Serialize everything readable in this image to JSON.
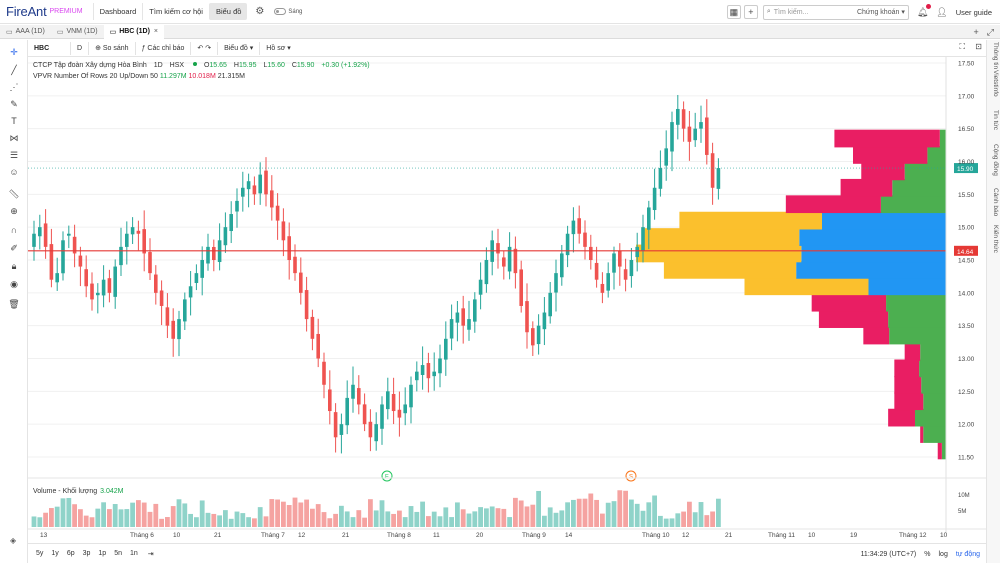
{
  "nav": {
    "logo": "FireAnt",
    "logo_badge": "PREMIUM",
    "items": [
      "Dashboard",
      "Tìm kiếm cơ hội",
      "Biểu đồ"
    ],
    "active_index": 2,
    "theme_label": "Sáng",
    "search_placeholder": "Tìm kiếm...",
    "search_scope": "Chứng khoán",
    "user_guide": "User guide"
  },
  "tabs": [
    {
      "label": "AAA (1D)",
      "active": false
    },
    {
      "label": "VNM (1D)",
      "active": false
    },
    {
      "label": "HBC (1D)",
      "active": true
    }
  ],
  "toolbar": {
    "symbol": "HBC",
    "interval": "D",
    "compare": "So sánh",
    "indicators": "Các chỉ báo",
    "chart_type": "Biểu đồ",
    "profile": "Hồ sơ"
  },
  "legend": {
    "company": "CTCP Tập đoàn Xây dựng Hòa Bình",
    "interval": "1D",
    "exchange": "HSX",
    "open": "15.65",
    "high": "15.95",
    "low": "15.60",
    "close": "15.90",
    "change": "+0.30 (+1.92%)",
    "vp_label": "VPVR Number Of Rows 20 Up/Down 50",
    "vp_up": "11.297M",
    "vp_down": "10.018M",
    "vp_total": "21.315M"
  },
  "volume_legend": {
    "label": "Volume - Khối lượng",
    "value": "3.042M"
  },
  "right_tabs": [
    "Thông tin",
    "Vietstinfo",
    "Tin tức",
    "Cộng đồng",
    "Cảnh báo",
    "Kiến thức"
  ],
  "bottom": {
    "ranges": [
      "5y",
      "1y",
      "6p",
      "3p",
      "1p",
      "5n",
      "1n"
    ],
    "time": "11:34:29 (UTC+7)",
    "percent": "%",
    "log": "log",
    "auto": "tự động"
  },
  "colors": {
    "up": "#26a69a",
    "down": "#ef5350",
    "vp_up": "#2196f3",
    "vp_down": "#e91e63",
    "va_up": "#fbc02d",
    "va_rest": "#4caf50"
  },
  "chart_data": {
    "type": "candlestick",
    "symbol": "HBC",
    "y_axis": {
      "min": 11.5,
      "max": 17.5,
      "ticks": [
        "11.50",
        "12.00",
        "12.50",
        "13.00",
        "13.50",
        "14.00",
        "14.50",
        "15.00",
        "15.50",
        "16.00",
        "16.50",
        "17.00",
        "17.50"
      ]
    },
    "price_line": {
      "value": 14.64,
      "label": "14.64"
    },
    "last_price": {
      "value": 15.9,
      "label": "15.90"
    },
    "x_ticks": [
      "13",
      "Tháng 6",
      "10",
      "21",
      "Tháng 7",
      "12",
      "21",
      "Tháng 8",
      "11",
      "20",
      "Tháng 9",
      "14",
      "Tháng 10",
      "12",
      "21",
      "Tháng 11",
      "10",
      "19",
      "Tháng 12",
      "10"
    ],
    "closes": [
      14.9,
      15.0,
      14.7,
      14.2,
      14.3,
      14.8,
      14.9,
      14.6,
      14.4,
      14.1,
      13.9,
      14.0,
      14.2,
      14.0,
      14.4,
      14.7,
      14.9,
      15.0,
      14.9,
      14.6,
      14.3,
      14.0,
      13.8,
      13.5,
      13.3,
      13.6,
      13.9,
      14.1,
      14.3,
      14.5,
      14.7,
      14.5,
      14.8,
      15.0,
      15.2,
      15.4,
      15.6,
      15.7,
      15.5,
      15.8,
      15.5,
      15.3,
      15.1,
      14.8,
      14.5,
      14.3,
      14.0,
      13.6,
      13.3,
      13.0,
      12.6,
      12.2,
      11.8,
      12.0,
      12.4,
      12.6,
      12.3,
      12.0,
      11.8,
      12.0,
      12.3,
      12.5,
      12.2,
      12.1,
      12.3,
      12.6,
      12.8,
      12.9,
      12.7,
      12.8,
      13.0,
      13.3,
      13.6,
      13.7,
      13.5,
      13.6,
      13.9,
      14.2,
      14.5,
      14.8,
      14.6,
      14.4,
      14.7,
      14.3,
      13.8,
      13.4,
      13.2,
      13.5,
      13.7,
      14.0,
      14.3,
      14.6,
      14.9,
      15.1,
      14.9,
      14.7,
      14.5,
      14.2,
      14.0,
      14.3,
      14.6,
      14.4,
      14.2,
      14.5,
      14.7,
      15.0,
      15.3,
      15.6,
      15.9,
      16.2,
      16.6,
      16.8,
      16.5,
      16.3,
      16.5,
      16.6,
      16.1,
      15.6,
      15.9
    ],
    "volume_profile": [
      {
        "price": 11.5,
        "up": 4,
        "down": 4
      },
      {
        "price": 11.75,
        "up": 22,
        "down": 3
      },
      {
        "price": 12.0,
        "up": 30,
        "down": 26
      },
      {
        "price": 12.25,
        "up": 22,
        "down": 28
      },
      {
        "price": 12.5,
        "up": 24,
        "down": 26
      },
      {
        "price": 12.75,
        "up": 26,
        "down": 24
      },
      {
        "price": 13.0,
        "up": 25,
        "down": 15
      },
      {
        "price": 13.25,
        "up": 55,
        "down": 25
      },
      {
        "price": 13.5,
        "up": 56,
        "down": 67
      },
      {
        "price": 13.75,
        "up": 58,
        "down": 72
      },
      {
        "price": 14.0,
        "up": 75,
        "down": 120
      },
      {
        "price": 14.25,
        "up": 145,
        "down": 128
      },
      {
        "price": 14.5,
        "up": 140,
        "down": 160
      },
      {
        "price": 14.75,
        "up": 142,
        "down": 152
      },
      {
        "price": 15.0,
        "up": 120,
        "down": 138
      },
      {
        "price": 15.25,
        "up": 63,
        "down": 92
      },
      {
        "price": 15.5,
        "up": 52,
        "down": 50
      },
      {
        "price": 15.75,
        "up": 40,
        "down": 42
      },
      {
        "price": 16.0,
        "up": 18,
        "down": 72
      },
      {
        "price": 16.25,
        "up": 6,
        "down": 102
      }
    ],
    "markers": [
      {
        "label": "F"
      },
      {
        "label": "S"
      }
    ],
    "volume_ticks": [
      "10M",
      "5M"
    ]
  }
}
